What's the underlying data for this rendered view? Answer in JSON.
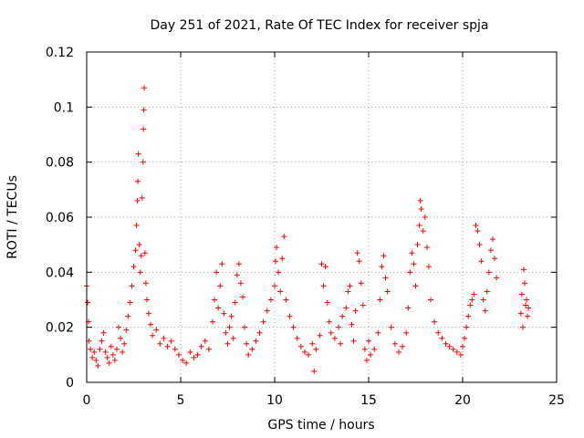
{
  "chart_data": {
    "type": "scatter",
    "title": "Day 251 of 2021, Rate Of TEC Index for receiver spja",
    "xlabel": "GPS time / hours",
    "ylabel": "ROTI / TECUs",
    "xlim": [
      0,
      25
    ],
    "ylim": [
      0,
      0.12
    ],
    "x_ticks": [
      0,
      5,
      10,
      15,
      20,
      25
    ],
    "y_ticks": [
      0,
      0.02,
      0.04,
      0.06,
      0.08,
      0.1,
      0.12
    ],
    "x_tick_labels": [
      "0",
      "5",
      "10",
      "15",
      "20",
      "25"
    ],
    "y_tick_labels": [
      "0",
      "0.02",
      "0.04",
      "0.06",
      "0.08",
      "0.1",
      "0.12"
    ],
    "grid": true,
    "marker": "+",
    "color": "#ff0000",
    "series": [
      {
        "name": "ROTI",
        "points": [
          [
            0.0,
            0.035
          ],
          [
            0.05,
            0.029
          ],
          [
            0.1,
            0.022
          ],
          [
            0.12,
            0.015
          ],
          [
            0.2,
            0.012
          ],
          [
            0.3,
            0.009
          ],
          [
            0.4,
            0.011
          ],
          [
            0.5,
            0.008
          ],
          [
            0.6,
            0.006
          ],
          [
            0.7,
            0.012
          ],
          [
            0.8,
            0.015
          ],
          [
            0.9,
            0.018
          ],
          [
            1.0,
            0.011
          ],
          [
            1.1,
            0.009
          ],
          [
            1.2,
            0.007
          ],
          [
            1.3,
            0.013
          ],
          [
            1.4,
            0.01
          ],
          [
            1.5,
            0.008
          ],
          [
            1.6,
            0.012
          ],
          [
            1.7,
            0.02
          ],
          [
            1.8,
            0.016
          ],
          [
            1.9,
            0.011
          ],
          [
            2.0,
            0.014
          ],
          [
            2.1,
            0.019
          ],
          [
            2.2,
            0.024
          ],
          [
            2.3,
            0.029
          ],
          [
            2.4,
            0.035
          ],
          [
            2.5,
            0.042
          ],
          [
            2.6,
            0.048
          ],
          [
            2.65,
            0.057
          ],
          [
            2.7,
            0.066
          ],
          [
            2.72,
            0.073
          ],
          [
            2.75,
            0.083
          ],
          [
            2.8,
            0.05
          ],
          [
            2.85,
            0.04
          ],
          [
            2.9,
            0.046
          ],
          [
            2.95,
            0.067
          ],
          [
            3.0,
            0.08
          ],
          [
            3.02,
            0.092
          ],
          [
            3.04,
            0.099
          ],
          [
            3.06,
            0.107
          ],
          [
            3.1,
            0.047
          ],
          [
            3.15,
            0.036
          ],
          [
            3.2,
            0.03
          ],
          [
            3.3,
            0.025
          ],
          [
            3.4,
            0.021
          ],
          [
            3.5,
            0.017
          ],
          [
            3.7,
            0.019
          ],
          [
            3.9,
            0.014
          ],
          [
            4.1,
            0.016
          ],
          [
            4.3,
            0.013
          ],
          [
            4.5,
            0.015
          ],
          [
            4.7,
            0.012
          ],
          [
            4.9,
            0.01
          ],
          [
            5.1,
            0.008
          ],
          [
            5.3,
            0.007
          ],
          [
            5.5,
            0.011
          ],
          [
            5.7,
            0.009
          ],
          [
            5.9,
            0.01
          ],
          [
            6.1,
            0.013
          ],
          [
            6.3,
            0.015
          ],
          [
            6.5,
            0.012
          ],
          [
            6.7,
            0.022
          ],
          [
            6.8,
            0.03
          ],
          [
            6.9,
            0.04
          ],
          [
            7.0,
            0.027
          ],
          [
            7.1,
            0.035
          ],
          [
            7.2,
            0.043
          ],
          [
            7.3,
            0.025
          ],
          [
            7.4,
            0.018
          ],
          [
            7.5,
            0.014
          ],
          [
            7.6,
            0.02
          ],
          [
            7.7,
            0.024
          ],
          [
            7.8,
            0.016
          ],
          [
            7.9,
            0.029
          ],
          [
            8.0,
            0.039
          ],
          [
            8.1,
            0.043
          ],
          [
            8.2,
            0.036
          ],
          [
            8.3,
            0.031
          ],
          [
            8.4,
            0.02
          ],
          [
            8.5,
            0.014
          ],
          [
            8.6,
            0.01
          ],
          [
            8.8,
            0.012
          ],
          [
            9.0,
            0.015
          ],
          [
            9.2,
            0.018
          ],
          [
            9.4,
            0.022
          ],
          [
            9.6,
            0.026
          ],
          [
            9.8,
            0.03
          ],
          [
            10.0,
            0.035
          ],
          [
            10.05,
            0.044
          ],
          [
            10.1,
            0.049
          ],
          [
            10.2,
            0.04
          ],
          [
            10.3,
            0.033
          ],
          [
            10.4,
            0.045
          ],
          [
            10.5,
            0.053
          ],
          [
            10.6,
            0.03
          ],
          [
            10.8,
            0.024
          ],
          [
            11.0,
            0.02
          ],
          [
            11.2,
            0.016
          ],
          [
            11.4,
            0.013
          ],
          [
            11.6,
            0.011
          ],
          [
            11.8,
            0.01
          ],
          [
            12.0,
            0.014
          ],
          [
            12.1,
            0.004
          ],
          [
            12.2,
            0.012
          ],
          [
            12.4,
            0.017
          ],
          [
            12.5,
            0.043
          ],
          [
            12.6,
            0.035
          ],
          [
            12.7,
            0.042
          ],
          [
            12.8,
            0.029
          ],
          [
            12.9,
            0.022
          ],
          [
            13.0,
            0.018
          ],
          [
            13.2,
            0.016
          ],
          [
            13.4,
            0.02
          ],
          [
            13.5,
            0.014
          ],
          [
            13.6,
            0.024
          ],
          [
            13.8,
            0.027
          ],
          [
            13.9,
            0.033
          ],
          [
            14.0,
            0.035
          ],
          [
            14.1,
            0.021
          ],
          [
            14.2,
            0.015
          ],
          [
            14.3,
            0.026
          ],
          [
            14.4,
            0.047
          ],
          [
            14.5,
            0.044
          ],
          [
            14.6,
            0.036
          ],
          [
            14.7,
            0.028
          ],
          [
            14.8,
            0.012
          ],
          [
            14.9,
            0.008
          ],
          [
            15.0,
            0.015
          ],
          [
            15.1,
            0.01
          ],
          [
            15.3,
            0.012
          ],
          [
            15.5,
            0.018
          ],
          [
            15.6,
            0.03
          ],
          [
            15.7,
            0.042
          ],
          [
            15.8,
            0.046
          ],
          [
            15.9,
            0.038
          ],
          [
            16.0,
            0.033
          ],
          [
            16.2,
            0.02
          ],
          [
            16.4,
            0.014
          ],
          [
            16.6,
            0.011
          ],
          [
            16.8,
            0.013
          ],
          [
            17.0,
            0.018
          ],
          [
            17.1,
            0.027
          ],
          [
            17.2,
            0.04
          ],
          [
            17.3,
            0.047
          ],
          [
            17.4,
            0.043
          ],
          [
            17.5,
            0.035
          ],
          [
            17.6,
            0.05
          ],
          [
            17.7,
            0.057
          ],
          [
            17.75,
            0.066
          ],
          [
            17.8,
            0.063
          ],
          [
            17.9,
            0.055
          ],
          [
            18.0,
            0.06
          ],
          [
            18.1,
            0.049
          ],
          [
            18.2,
            0.042
          ],
          [
            18.3,
            0.03
          ],
          [
            18.5,
            0.022
          ],
          [
            18.7,
            0.018
          ],
          [
            18.9,
            0.016
          ],
          [
            19.1,
            0.014
          ],
          [
            19.3,
            0.013
          ],
          [
            19.5,
            0.012
          ],
          [
            19.7,
            0.011
          ],
          [
            19.9,
            0.01
          ],
          [
            20.0,
            0.013
          ],
          [
            20.1,
            0.016
          ],
          [
            20.2,
            0.02
          ],
          [
            20.3,
            0.024
          ],
          [
            20.4,
            0.028
          ],
          [
            20.5,
            0.03
          ],
          [
            20.6,
            0.032
          ],
          [
            20.7,
            0.057
          ],
          [
            20.8,
            0.055
          ],
          [
            20.9,
            0.05
          ],
          [
            21.0,
            0.044
          ],
          [
            21.1,
            0.03
          ],
          [
            21.2,
            0.026
          ],
          [
            21.3,
            0.033
          ],
          [
            21.4,
            0.04
          ],
          [
            21.5,
            0.048
          ],
          [
            21.6,
            0.052
          ],
          [
            21.7,
            0.045
          ],
          [
            21.8,
            0.038
          ],
          [
            23.1,
            0.025
          ],
          [
            23.15,
            0.032
          ],
          [
            23.2,
            0.02
          ],
          [
            23.25,
            0.041
          ],
          [
            23.3,
            0.036
          ],
          [
            23.35,
            0.028
          ],
          [
            23.4,
            0.03
          ],
          [
            23.45,
            0.024
          ],
          [
            23.5,
            0.027
          ]
        ]
      }
    ]
  }
}
